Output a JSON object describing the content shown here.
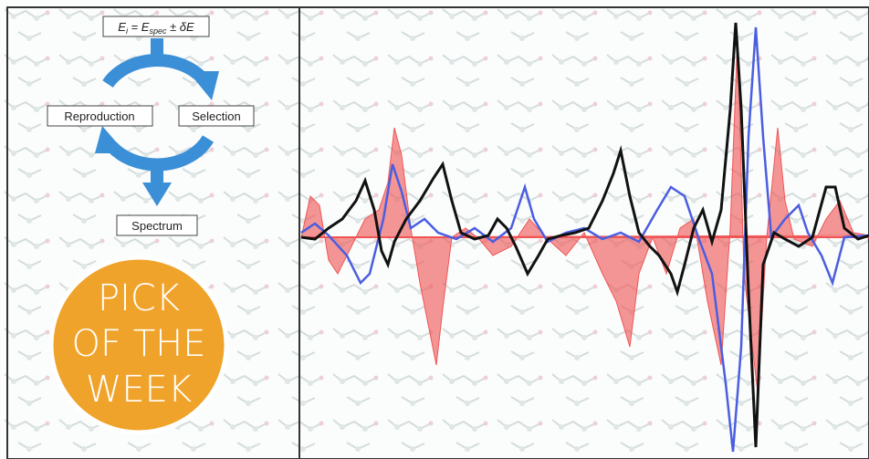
{
  "diagram": {
    "formula": {
      "parts": [
        "E",
        "i",
        " = E",
        "spec",
        " ± δE"
      ]
    },
    "cycle": [
      "Reproduction",
      "Selection"
    ],
    "output": "Spectrum",
    "badge": [
      "PICK",
      "OF THE",
      "WEEK"
    ]
  }
}
